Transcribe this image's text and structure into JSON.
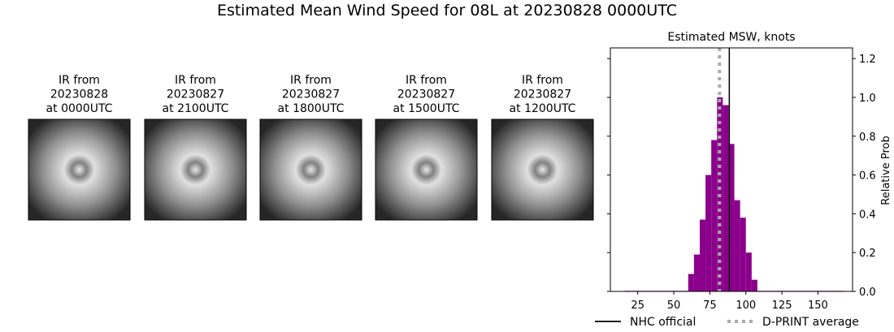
{
  "title": "Estimated Mean Wind Speed for 08L at 20230828 0000UTC",
  "panels": [
    {
      "lines": [
        "IR from",
        "20230828",
        "at 0000UTC"
      ]
    },
    {
      "lines": [
        "IR from",
        "20230827",
        "at 2100UTC"
      ]
    },
    {
      "lines": [
        "IR from",
        "20230827",
        "at 1800UTC"
      ]
    },
    {
      "lines": [
        "IR from",
        "20230827",
        "at 1500UTC"
      ]
    },
    {
      "lines": [
        "IR from",
        "20230827",
        "at 1200UTC"
      ]
    }
  ],
  "chart_data": {
    "type": "histogram",
    "title": "Estimated MSW, knots",
    "ylabel": "Relative Prob",
    "color": "#8b008b",
    "bins": [
      16,
      20,
      24,
      28,
      32,
      36,
      40,
      44,
      48,
      52,
      56,
      60,
      64,
      68,
      72,
      76,
      80,
      84,
      88,
      92,
      96,
      100,
      104,
      108,
      112,
      116,
      120,
      124,
      128,
      132,
      136,
      140,
      144,
      148,
      152,
      156,
      160,
      164,
      168
    ],
    "counts": [
      0.003,
      0.003,
      0.003,
      0.003,
      0.003,
      0.003,
      0.003,
      0.003,
      0.003,
      0.003,
      0.003,
      0.09,
      0.19,
      0.37,
      0.6,
      0.78,
      1.0,
      0.96,
      0.76,
      0.47,
      0.38,
      0.2,
      0.06,
      0.003,
      0.003,
      0.003,
      0.003,
      0.003,
      0.003,
      0.003,
      0.003,
      0.003,
      0.003,
      0.003,
      0.003,
      0.003,
      0.003,
      0.003
    ],
    "xlim": [
      6,
      174
    ],
    "ylim": [
      0,
      1.255
    ],
    "xticks": [
      25,
      50,
      75,
      100,
      125,
      150
    ],
    "yticks": [
      {
        "value": 0,
        "label": "0.0"
      },
      {
        "value": 0.2,
        "label": "0.2"
      },
      {
        "value": 0.4,
        "label": "0.4"
      },
      {
        "value": 0.6,
        "label": "0.6"
      },
      {
        "value": 0.8,
        "label": "0.8"
      },
      {
        "value": 1.0,
        "label": "1.0"
      },
      {
        "value": 1.2,
        "label": "1.2"
      }
    ],
    "lines": [
      {
        "name": "NHC official",
        "x": 88.5,
        "color": "#000000",
        "style": "solid"
      },
      {
        "name": "D-PRINT average",
        "x": 81.7,
        "color": "#aaaaaa",
        "style": "dotted"
      }
    ]
  }
}
